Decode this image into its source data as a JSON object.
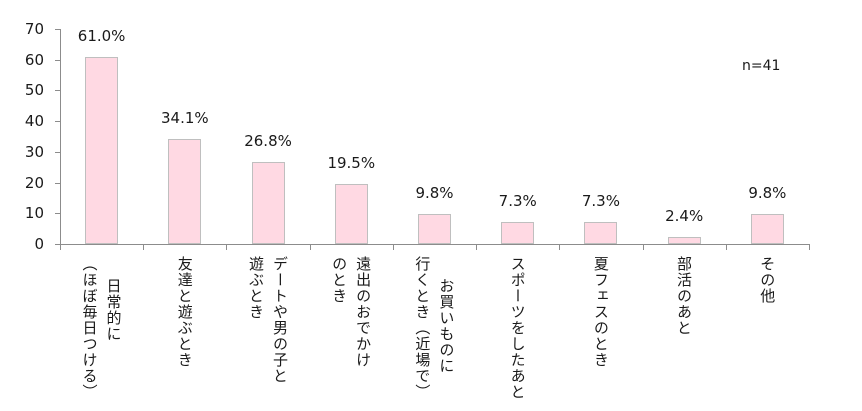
{
  "chart_data": {
    "type": "bar",
    "title": "",
    "xlabel": "",
    "ylabel": "",
    "ylim": [
      0,
      70
    ],
    "yticks": [
      0,
      10,
      20,
      30,
      40,
      50,
      60,
      70
    ],
    "grid": false,
    "legend": null,
    "annotation": "n=41",
    "bar_color": "#ffd9e3",
    "bar_edge_color": "#bfbfbf",
    "categories": [
      "日常的に（ほぼ毎日つける）",
      "友達と遊ぶとき",
      "デートや男の子と遊ぶとき",
      "遠出のおでかけのとき",
      "お買いものに行くとき（近場で）",
      "スポーツをしたあと",
      "夏フェスのとき",
      "部活のあと",
      "その他"
    ],
    "category_lines": [
      [
        "日常的に",
        "（ほぼ毎日つける）"
      ],
      [
        "友達と遊ぶとき"
      ],
      [
        "デートや男の子と",
        "遊ぶとき"
      ],
      [
        "遠出のおでかけ",
        "のとき"
      ],
      [
        "お買いものに",
        "行くとき（近場で）"
      ],
      [
        "スポーツをしたあと"
      ],
      [
        "夏フェスのとき"
      ],
      [
        "部活のあと"
      ],
      [
        "その他"
      ]
    ],
    "values": [
      61.0,
      34.1,
      26.8,
      19.5,
      9.8,
      7.3,
      7.3,
      2.4,
      9.8
    ],
    "value_labels": [
      "61.0%",
      "34.1%",
      "26.8%",
      "19.5%",
      "9.8%",
      "7.3%",
      "7.3%",
      "2.4%",
      "9.8%"
    ]
  }
}
